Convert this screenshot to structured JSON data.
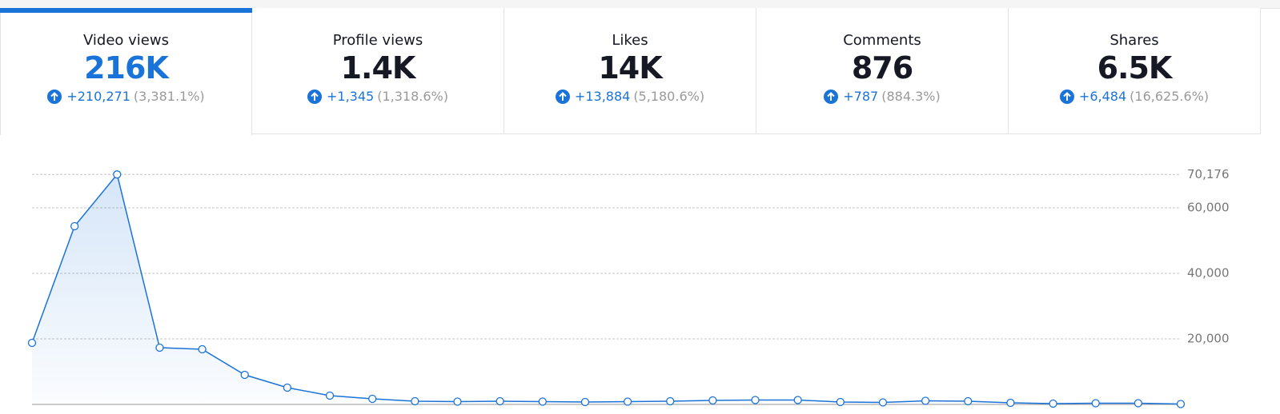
{
  "tabs": [
    {
      "label": "Video views",
      "value": "216K",
      "change": "+210,271",
      "percent": "(3,381.1%)"
    },
    {
      "label": "Profile views",
      "value": "1.4K",
      "change": "+1,345",
      "percent": "(1,318.6%)"
    },
    {
      "label": "Likes",
      "value": "14K",
      "change": "+13,884",
      "percent": "(5,180.6%)"
    },
    {
      "label": "Comments",
      "value": "876",
      "change": "+787",
      "percent": "(884.3%)"
    },
    {
      "label": "Shares",
      "value": "6.5K",
      "change": "+6,484",
      "percent": "(16,625.6%)"
    }
  ],
  "chart_data": {
    "type": "line",
    "color": "#1a73d9",
    "categories": [
      null,
      null,
      null,
      null,
      null,
      null,
      null,
      null,
      null,
      null,
      null,
      null,
      null,
      null,
      null,
      null,
      null,
      null,
      null,
      null,
      null,
      null,
      null,
      null,
      null,
      null,
      null,
      null
    ],
    "values": [
      18780,
      54390,
      70176,
      17320,
      16830,
      9020,
      5120,
      2680,
      1710,
      980,
      850,
      980,
      850,
      730,
      850,
      980,
      1220,
      1340,
      1340,
      730,
      610,
      1100,
      980,
      490,
      240,
      370,
      370,
      120
    ],
    "ylim": [
      0,
      70176
    ],
    "yticks": [
      {
        "value": 20000,
        "label": "20,000"
      },
      {
        "value": 40000,
        "label": "40,000"
      },
      {
        "value": 60000,
        "label": "60,000"
      },
      {
        "value": 70176,
        "label": "70,176"
      }
    ],
    "grid": true
  }
}
